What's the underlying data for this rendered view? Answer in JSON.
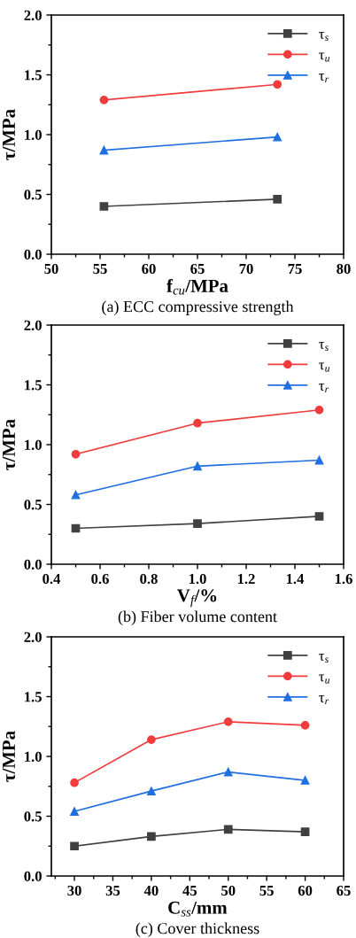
{
  "chart_data": [
    {
      "type": "line",
      "xlabel": "f$_{cu}$/MPa",
      "ylabel": "τ/MPa",
      "x": [
        55.4,
        73.2
      ],
      "xlim": [
        50,
        80
      ],
      "ylim": [
        0,
        2
      ],
      "xticks": [
        50,
        55,
        60,
        65,
        70,
        75,
        80,
        {
          "value": 52.5,
          "label": null
        },
        {
          "value": 57.5,
          "label": null
        },
        {
          "value": 62.5,
          "label": null
        },
        {
          "value": 67.5,
          "label": null
        },
        {
          "value": 72.5,
          "label": null
        },
        {
          "value": 77.5,
          "label": null
        }
      ],
      "yticks": [
        {
          "value": 0,
          "label": "0.0"
        },
        {
          "value": 0.5,
          "label": "0.5"
        },
        {
          "value": 1,
          "label": "1.0"
        },
        {
          "value": 1.5,
          "label": "1.5"
        },
        {
          "value": 2,
          "label": "2.0"
        },
        {
          "value": 0.25,
          "label": null
        },
        {
          "value": 0.75,
          "label": null
        },
        {
          "value": 1.25,
          "label": null
        },
        {
          "value": 1.75,
          "label": null
        }
      ],
      "series": [
        {
          "name": "τ$_{s}$",
          "color": "#404040",
          "marker": "square",
          "values": [
            0.4,
            0.46
          ]
        },
        {
          "name": "τ$_{u}$",
          "color": "#f03c3c",
          "marker": "circle",
          "values": [
            1.29,
            1.42
          ]
        },
        {
          "name": "τ$_{r}$",
          "color": "#1f6fe0",
          "marker": "triangle",
          "values": [
            0.87,
            0.98
          ]
        }
      ],
      "legend": "top right",
      "grid": false,
      "annotations": [
        "(a) ECC compressive strength"
      ]
    },
    {
      "type": "line",
      "xlabel": "V$_{f}$/%",
      "ylabel": "τ/MPa",
      "x": [
        0.5,
        1.0,
        1.5
      ],
      "xlim": [
        0.4,
        1.6
      ],
      "ylim": [
        0,
        2
      ],
      "xticks": [
        0.4,
        0.6,
        0.8,
        {
          "value": 1.0,
          "label": "1.0"
        },
        1.2,
        1.4,
        1.6,
        {
          "value": 0.5,
          "label": null
        },
        {
          "value": 0.7,
          "label": null
        },
        {
          "value": 0.9,
          "label": null
        },
        {
          "value": 1.1,
          "label": null
        },
        {
          "value": 1.3,
          "label": null
        },
        {
          "value": 1.5,
          "label": null
        }
      ],
      "yticks": [
        {
          "value": 0,
          "label": "0.0"
        },
        {
          "value": 0.5,
          "label": "0.5"
        },
        {
          "value": 1,
          "label": "1.0"
        },
        {
          "value": 1.5,
          "label": "1.5"
        },
        {
          "value": 2,
          "label": "2.0"
        },
        {
          "value": 0.25,
          "label": null
        },
        {
          "value": 0.75,
          "label": null
        },
        {
          "value": 1.25,
          "label": null
        },
        {
          "value": 1.75,
          "label": null
        }
      ],
      "series": [
        {
          "name": "τ$_{s}$",
          "color": "#404040",
          "marker": "square",
          "values": [
            0.3,
            0.34,
            0.4
          ]
        },
        {
          "name": "τ$_{u}$",
          "color": "#f03c3c",
          "marker": "circle",
          "values": [
            0.92,
            1.18,
            1.29
          ]
        },
        {
          "name": "τ$_{r}$",
          "color": "#1f6fe0",
          "marker": "triangle",
          "values": [
            0.58,
            0.82,
            0.87
          ]
        }
      ],
      "legend": "top right",
      "grid": false,
      "annotations": [
        "(b) Fiber volume content"
      ]
    },
    {
      "type": "line",
      "xlabel": "C$_{ss}$/mm",
      "ylabel": "τ/MPa",
      "x": [
        30,
        40,
        50,
        60
      ],
      "xlim": [
        27,
        65
      ],
      "ylim": [
        0,
        2
      ],
      "xticks": [
        30,
        35,
        40,
        45,
        50,
        55,
        60,
        65,
        {
          "value": 27.5,
          "label": null
        },
        {
          "value": 32.5,
          "label": null
        },
        {
          "value": 37.5,
          "label": null
        },
        {
          "value": 42.5,
          "label": null
        },
        {
          "value": 47.5,
          "label": null
        },
        {
          "value": 52.5,
          "label": null
        },
        {
          "value": 57.5,
          "label": null
        },
        {
          "value": 62.5,
          "label": null
        }
      ],
      "yticks": [
        {
          "value": 0,
          "label": "0.0"
        },
        {
          "value": 0.5,
          "label": "0.5"
        },
        {
          "value": 1,
          "label": "1.0"
        },
        {
          "value": 1.5,
          "label": "1.5"
        },
        {
          "value": 2,
          "label": "2.0"
        },
        {
          "value": 0.25,
          "label": null
        },
        {
          "value": 0.75,
          "label": null
        },
        {
          "value": 1.25,
          "label": null
        },
        {
          "value": 1.75,
          "label": null
        }
      ],
      "series": [
        {
          "name": "τ$_{s}$",
          "color": "#404040",
          "marker": "square",
          "values": [
            0.25,
            0.33,
            0.39,
            0.37
          ]
        },
        {
          "name": "τ$_{u}$",
          "color": "#f03c3c",
          "marker": "circle",
          "values": [
            0.78,
            1.14,
            1.29,
            1.26
          ]
        },
        {
          "name": "τ$_{r}$",
          "color": "#1f6fe0",
          "marker": "triangle",
          "values": [
            0.54,
            0.71,
            0.87,
            0.8
          ]
        }
      ],
      "legend": "top right",
      "grid": false,
      "annotations": [
        "(c) Cover thickness"
      ]
    }
  ]
}
